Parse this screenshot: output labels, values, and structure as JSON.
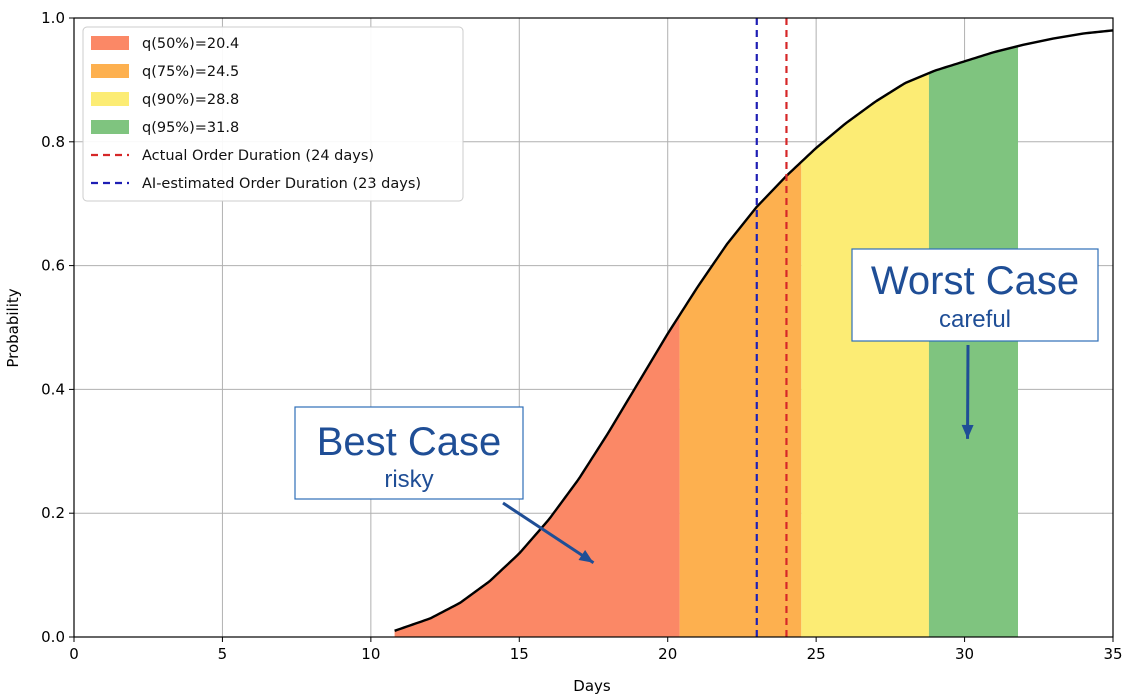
{
  "chart_data": {
    "type": "area",
    "xlabel": "Days",
    "ylabel": "Probability",
    "xlim": [
      0,
      35
    ],
    "ylim": [
      0,
      1.0
    ],
    "xticks": [
      0,
      5,
      10,
      15,
      20,
      25,
      30,
      35
    ],
    "yticks": [
      0.0,
      0.2,
      0.4,
      0.6,
      0.8,
      1.0
    ],
    "grid": true,
    "legend_position": "top-left",
    "curve": {
      "x": [
        10.8,
        12,
        13,
        14,
        15,
        16,
        17,
        18,
        19,
        20,
        21,
        22,
        23,
        24,
        25,
        26,
        27,
        28,
        29,
        30,
        31,
        32,
        33,
        34,
        35
      ],
      "y": [
        0.01,
        0.03,
        0.055,
        0.09,
        0.135,
        0.19,
        0.255,
        0.33,
        0.41,
        0.49,
        0.565,
        0.635,
        0.695,
        0.745,
        0.79,
        0.83,
        0.865,
        0.895,
        0.915,
        0.93,
        0.945,
        0.957,
        0.967,
        0.975,
        0.98
      ]
    },
    "quantile_bands": [
      {
        "label": "q(50%)=20.4",
        "from": 10.8,
        "to": 20.4,
        "color": "#fb8866"
      },
      {
        "label": "q(75%)=24.5",
        "from": 20.4,
        "to": 24.5,
        "color": "#fdb04f"
      },
      {
        "label": "q(90%)=28.8",
        "from": 24.5,
        "to": 28.8,
        "color": "#fcec74"
      },
      {
        "label": "q(95%)=31.8",
        "from": 28.8,
        "to": 31.8,
        "color": "#7fc47f"
      }
    ],
    "vlines": [
      {
        "label": "Actual Order Duration (24 days)",
        "x": 24,
        "color": "#d62728"
      },
      {
        "label": "AI-estimated Order Duration (23 days)",
        "x": 23,
        "color": "#1f1fb4"
      }
    ],
    "annotations": [
      {
        "title": "Best Case",
        "subtitle": "risky",
        "arrow_to": [
          17.5,
          0.12
        ]
      },
      {
        "title": "Worst Case",
        "subtitle": "careful",
        "arrow_to": [
          30.1,
          0.32
        ]
      }
    ]
  },
  "colors": {
    "curve": "#000000",
    "grid": "#b0b0b0",
    "callout_text": "#1f4e96",
    "callout_border": "#2e6fb8",
    "arrow": "#1f4e96"
  }
}
